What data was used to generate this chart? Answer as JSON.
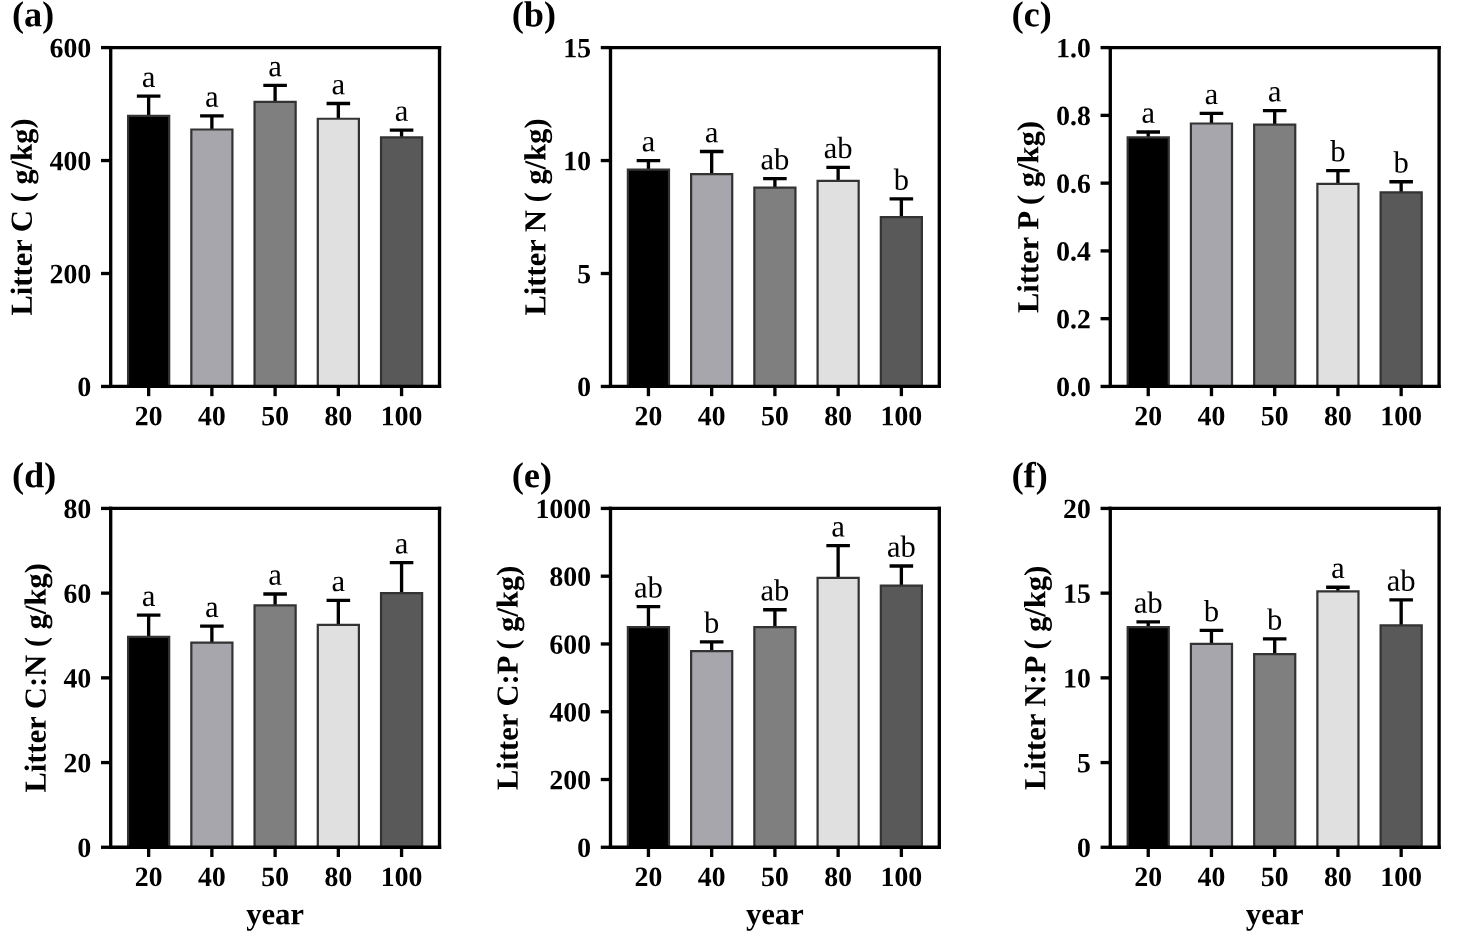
{
  "chart_data": [
    {
      "type": "bar",
      "title": "(a)",
      "ylabel": "Litter C ( g/kg)",
      "categories": [
        "20",
        "40",
        "50",
        "80",
        "100"
      ],
      "values": [
        479,
        455,
        504,
        474,
        441
      ],
      "errors": [
        [
          479,
          514
        ],
        [
          455,
          479
        ],
        [
          504,
          533
        ],
        [
          474,
          501
        ],
        [
          441,
          454
        ]
      ],
      "colors": [
        "#000000",
        "#a6a6ac",
        "#7f7f7f",
        "#e0e0e0",
        "#595959"
      ],
      "ylim": [
        0,
        600
      ],
      "yticks": [
        0,
        200,
        400,
        600
      ],
      "grid": false,
      "legend": false,
      "annotations": [
        {
          "text": "a",
          "x": "20",
          "y": 514
        },
        {
          "text": "a",
          "x": "40",
          "y": 479
        },
        {
          "text": "a",
          "x": "50",
          "y": 533
        },
        {
          "text": "a",
          "x": "80",
          "y": 501
        },
        {
          "text": "a",
          "x": "100",
          "y": 454
        }
      ]
    },
    {
      "type": "bar",
      "title": "(b)",
      "ylabel": "Litter N ( g/kg)",
      "categories": [
        "20",
        "40",
        "50",
        "80",
        "100"
      ],
      "values": [
        9.6,
        9.4,
        8.8,
        9.1,
        7.5
      ],
      "errors": [
        [
          9.6,
          10.0
        ],
        [
          9.4,
          10.4
        ],
        [
          8.8,
          9.2
        ],
        [
          9.1,
          9.7
        ],
        [
          7.5,
          8.3
        ]
      ],
      "colors": [
        "#000000",
        "#a6a6ac",
        "#7f7f7f",
        "#e0e0e0",
        "#595959"
      ],
      "ylim": [
        0,
        15
      ],
      "yticks": [
        0,
        5,
        10,
        15
      ],
      "grid": false,
      "legend": false,
      "annotations": [
        {
          "text": "a",
          "x": "20",
          "y": 10.0
        },
        {
          "text": "a",
          "x": "40",
          "y": 10.4
        },
        {
          "text": "ab",
          "x": "50",
          "y": 9.2
        },
        {
          "text": "ab",
          "x": "80",
          "y": 9.7
        },
        {
          "text": "b",
          "x": "100",
          "y": 8.3
        }
      ]
    },
    {
      "type": "bar",
      "title": "(c)",
      "ylabel": "Litter P ( g/kg)",
      "categories": [
        "20",
        "40",
        "50",
        "80",
        "100"
      ],
      "values": [
        0.735,
        0.776,
        0.773,
        0.598,
        0.573
      ],
      "errors": [
        [
          0.735,
          0.751
        ],
        [
          0.776,
          0.806
        ],
        [
          0.773,
          0.814
        ],
        [
          0.598,
          0.637
        ],
        [
          0.573,
          0.604
        ]
      ],
      "colors": [
        "#000000",
        "#a6a6ac",
        "#7f7f7f",
        "#e0e0e0",
        "#595959"
      ],
      "ylim": [
        0,
        1.0
      ],
      "yticks": [
        {
          "value": 0,
          "label": "0.0"
        },
        {
          "value": 0.2,
          "label": "0.2"
        },
        {
          "value": 0.4,
          "label": "0.4"
        },
        {
          "value": 0.6,
          "label": "0.6"
        },
        {
          "value": 0.8,
          "label": "0.8"
        },
        {
          "value": 1.0,
          "label": "1.0"
        }
      ],
      "grid": false,
      "legend": false,
      "annotations": [
        {
          "text": "a",
          "x": "20",
          "y": 0.751
        },
        {
          "text": "a",
          "x": "40",
          "y": 0.806
        },
        {
          "text": "a",
          "x": "50",
          "y": 0.814
        },
        {
          "text": "b",
          "x": "80",
          "y": 0.637
        },
        {
          "text": "b",
          "x": "100",
          "y": 0.604
        }
      ]
    },
    {
      "type": "bar",
      "title": "(d)",
      "ylabel": "Litter C:N ( g/kg)",
      "xlabel": "year",
      "categories": [
        "20",
        "40",
        "50",
        "80",
        "100"
      ],
      "values": [
        49.7,
        48.3,
        57.1,
        52.5,
        60.0
      ],
      "errors": [
        [
          49.7,
          54.8
        ],
        [
          48.3,
          52.2
        ],
        [
          57.1,
          59.8
        ],
        [
          52.5,
          58.3
        ],
        [
          60.0,
          67.2
        ]
      ],
      "colors": [
        "#000000",
        "#a6a6ac",
        "#7f7f7f",
        "#e0e0e0",
        "#595959"
      ],
      "ylim": [
        0,
        80
      ],
      "yticks": [
        0,
        20,
        40,
        60,
        80
      ],
      "grid": false,
      "legend": false,
      "annotations": [
        {
          "text": "a",
          "x": "20",
          "y": 54.8
        },
        {
          "text": "a",
          "x": "40",
          "y": 52.2
        },
        {
          "text": "a",
          "x": "50",
          "y": 59.8
        },
        {
          "text": "a",
          "x": "80",
          "y": 58.3
        },
        {
          "text": "a",
          "x": "100",
          "y": 67.2
        }
      ]
    },
    {
      "type": "bar",
      "title": "(e)",
      "ylabel": "Litter C:P ( g/kg)",
      "xlabel": "year",
      "categories": [
        "20",
        "40",
        "50",
        "80",
        "100"
      ],
      "values": [
        650,
        579,
        650,
        795,
        772
      ],
      "errors": [
        [
          650,
          710
        ],
        [
          579,
          606
        ],
        [
          650,
          701
        ],
        [
          795,
          890
        ],
        [
          772,
          830
        ]
      ],
      "colors": [
        "#000000",
        "#a6a6ac",
        "#7f7f7f",
        "#e0e0e0",
        "#595959"
      ],
      "ylim": [
        0,
        1000
      ],
      "yticks": [
        0,
        200,
        400,
        600,
        800,
        1000
      ],
      "grid": false,
      "legend": false,
      "annotations": [
        {
          "text": "ab",
          "x": "20",
          "y": 710
        },
        {
          "text": "b",
          "x": "40",
          "y": 606
        },
        {
          "text": "ab",
          "x": "50",
          "y": 701
        },
        {
          "text": "a",
          "x": "80",
          "y": 890
        },
        {
          "text": "ab",
          "x": "100",
          "y": 830
        }
      ]
    },
    {
      "type": "bar",
      "title": "(f)",
      "ylabel": "Litter N:P ( g/kg)",
      "xlabel": "year",
      "categories": [
        "20",
        "40",
        "50",
        "80",
        "100"
      ],
      "values": [
        13.0,
        12.0,
        11.4,
        15.1,
        13.1
      ],
      "errors": [
        [
          13.0,
          13.3
        ],
        [
          12.0,
          12.8
        ],
        [
          11.4,
          12.3
        ],
        [
          15.1,
          15.35
        ],
        [
          13.1,
          14.6
        ]
      ],
      "colors": [
        "#000000",
        "#a6a6ac",
        "#7f7f7f",
        "#e0e0e0",
        "#595959"
      ],
      "ylim": [
        0,
        20
      ],
      "yticks": [
        0,
        5,
        10,
        15,
        20
      ],
      "grid": false,
      "legend": false,
      "annotations": [
        {
          "text": "ab",
          "x": "20",
          "y": 13.3
        },
        {
          "text": "b",
          "x": "40",
          "y": 12.8
        },
        {
          "text": "b",
          "x": "50",
          "y": 12.3
        },
        {
          "text": "a",
          "x": "80",
          "y": 15.35
        },
        {
          "text": "ab",
          "x": "100",
          "y": 14.6
        }
      ]
    }
  ]
}
